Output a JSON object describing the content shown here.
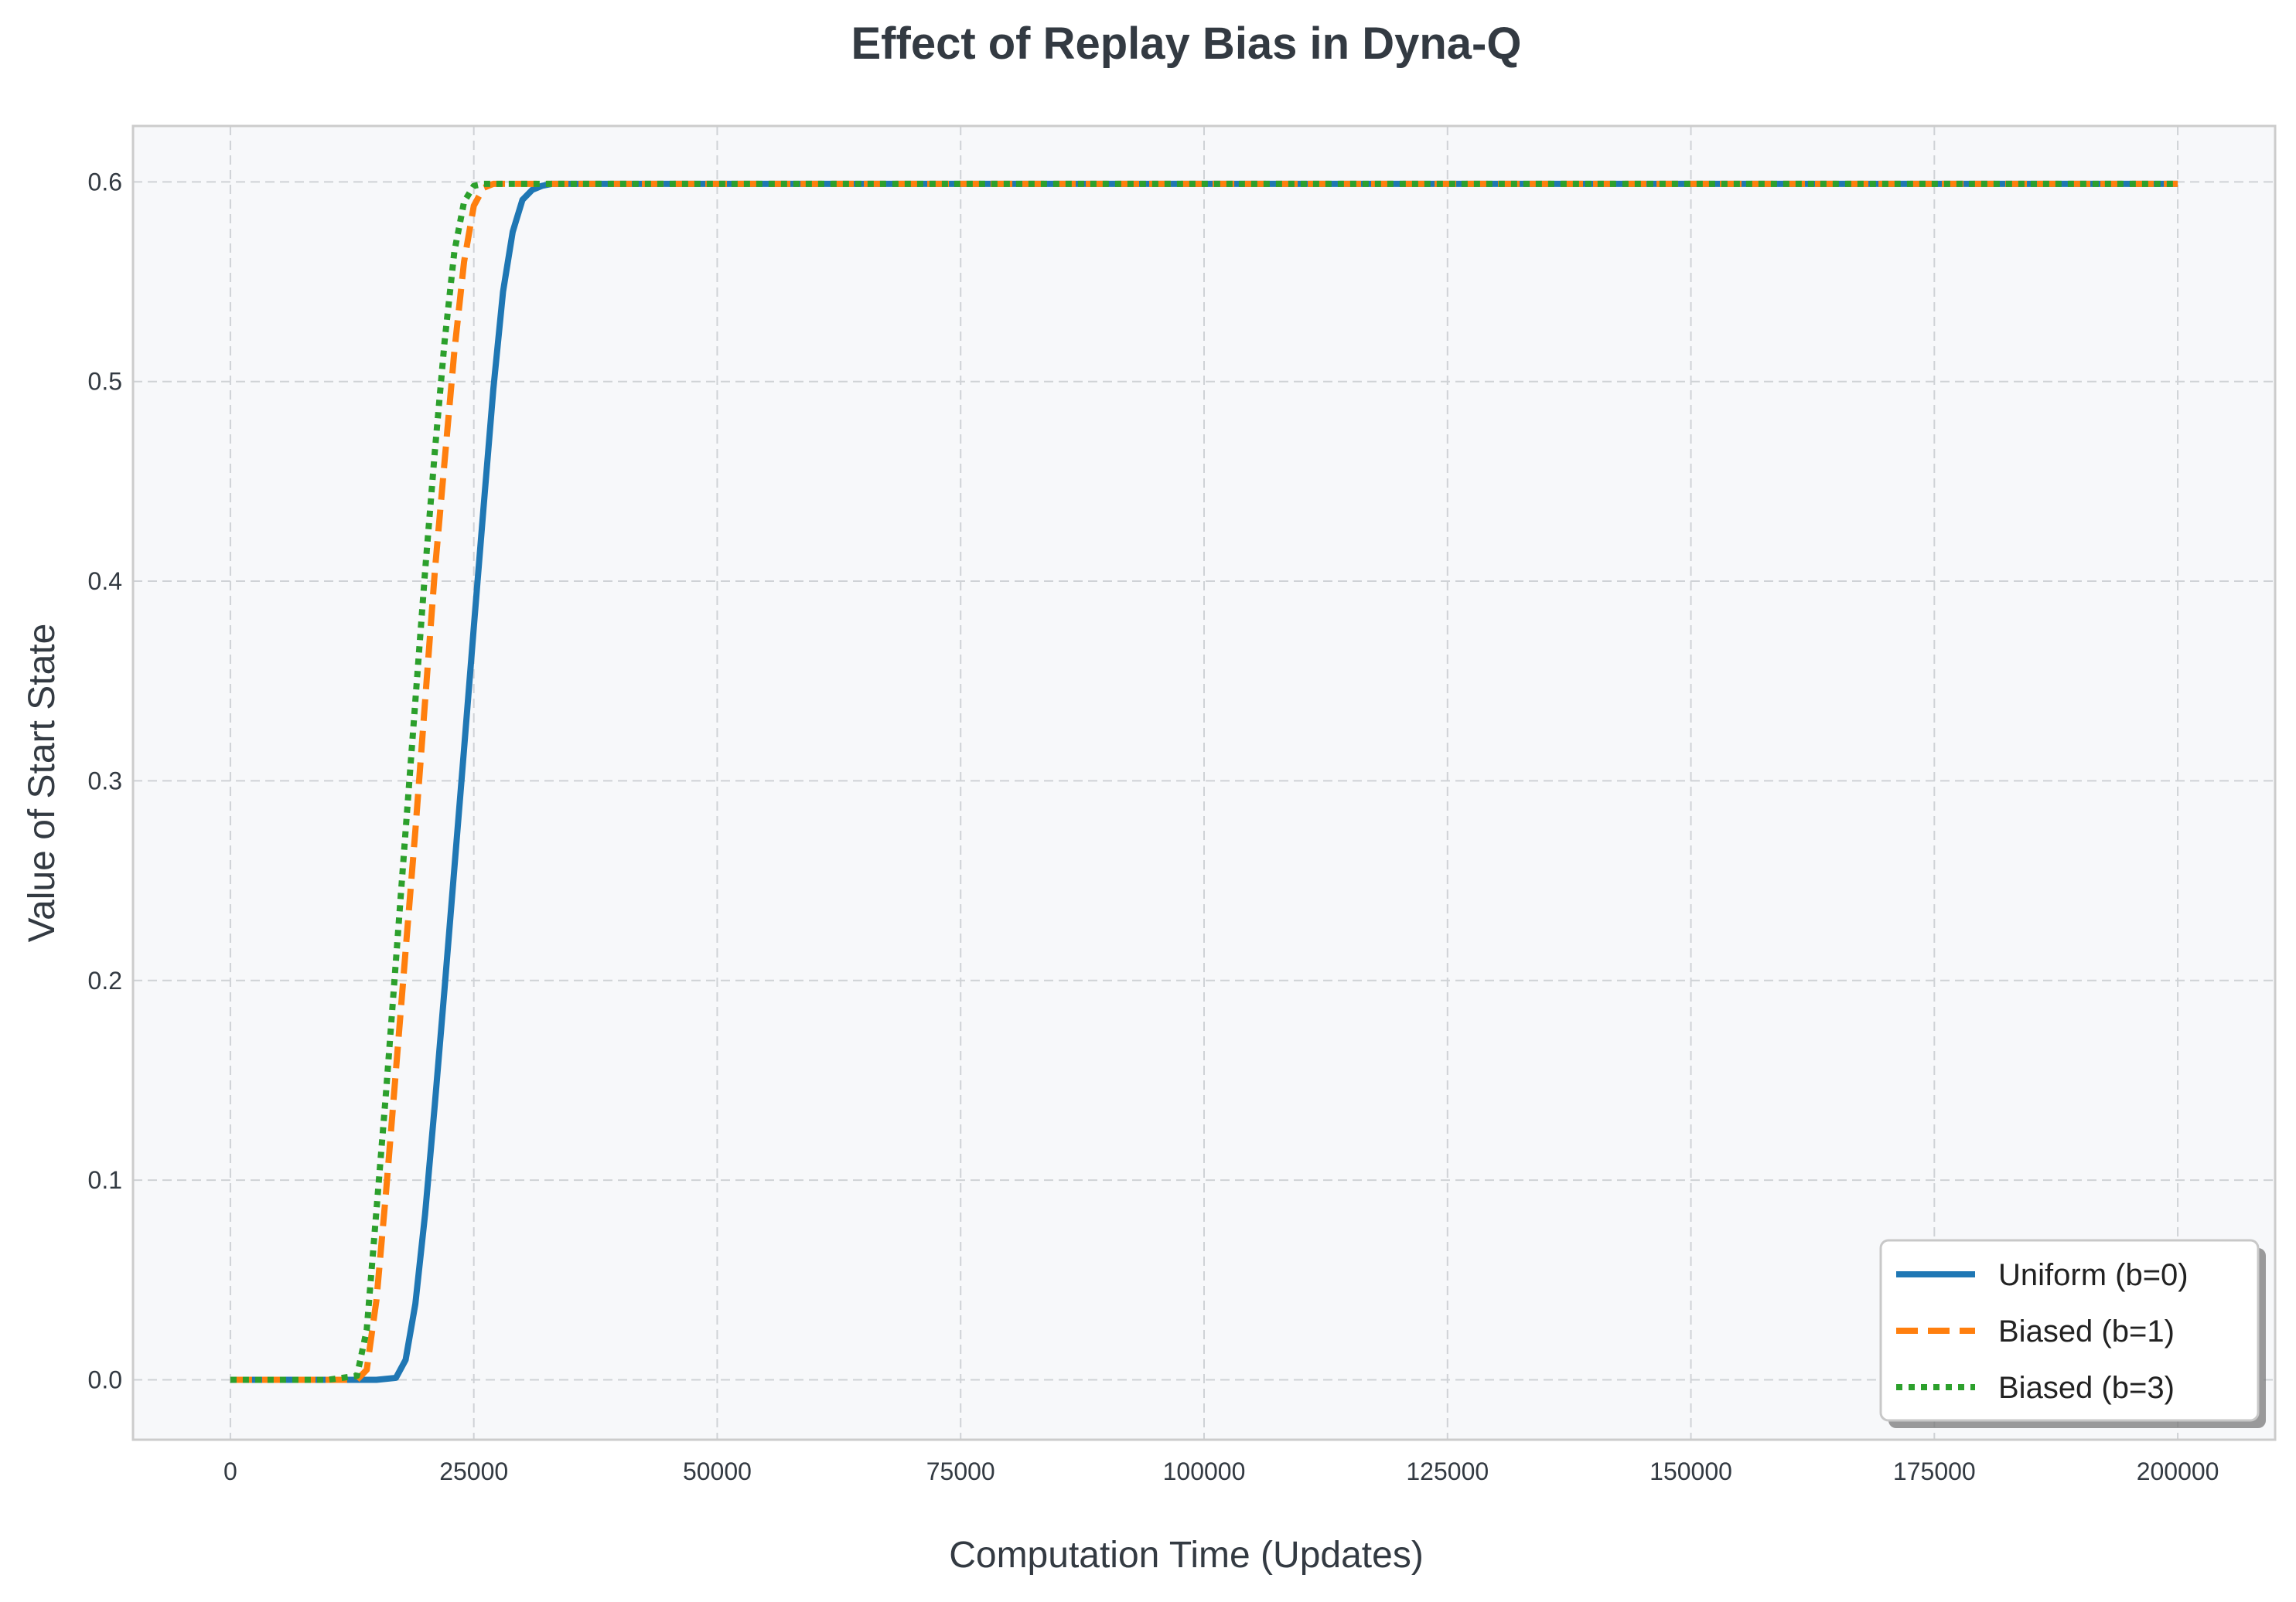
{
  "chart_data": {
    "type": "line",
    "title": "Effect of Replay Bias in Dyna-Q",
    "xlabel": "Computation Time (Updates)",
    "ylabel": "Value of Start State",
    "xlim": [
      -10000,
      210000
    ],
    "ylim": [
      -0.03,
      0.628
    ],
    "xticks": [
      0,
      25000,
      50000,
      75000,
      100000,
      125000,
      150000,
      175000,
      200000
    ],
    "xtick_labels": [
      "0",
      "25000",
      "50000",
      "75000",
      "100000",
      "125000",
      "150000",
      "175000",
      "200000"
    ],
    "yticks": [
      0.0,
      0.1,
      0.2,
      0.3,
      0.4,
      0.5,
      0.6
    ],
    "ytick_labels": [
      "0.0",
      "0.1",
      "0.2",
      "0.3",
      "0.4",
      "0.5",
      "0.6"
    ],
    "grid": true,
    "legend_position": "lower-right",
    "background_color": "#f7f8fa",
    "series": [
      {
        "name": "Uniform (b=0)",
        "color": "#1f77b4",
        "style": "solid",
        "x": [
          0,
          5000,
          10000,
          15000,
          17000,
          18000,
          19000,
          20000,
          21000,
          22000,
          23000,
          24000,
          25000,
          26000,
          27000,
          28000,
          29000,
          30000,
          31000,
          32000,
          33000,
          35000,
          50000,
          100000,
          150000,
          200000
        ],
        "y": [
          0,
          0,
          0,
          0,
          0.001,
          0.01,
          0.038,
          0.083,
          0.138,
          0.196,
          0.256,
          0.316,
          0.377,
          0.437,
          0.496,
          0.545,
          0.575,
          0.591,
          0.596,
          0.598,
          0.599,
          0.599,
          0.599,
          0.599,
          0.599,
          0.599
        ]
      },
      {
        "name": "Biased (b=1)",
        "color": "#ff7f0e",
        "style": "dashed",
        "x": [
          0,
          5000,
          10000,
          13000,
          14000,
          15000,
          16000,
          17000,
          18000,
          19000,
          20000,
          21000,
          22000,
          23000,
          24000,
          25000,
          26000,
          27000,
          28000,
          30000,
          50000,
          100000,
          150000,
          200000
        ],
        "y": [
          0,
          0,
          0,
          0,
          0.005,
          0.04,
          0.095,
          0.155,
          0.215,
          0.275,
          0.34,
          0.405,
          0.46,
          0.515,
          0.56,
          0.588,
          0.597,
          0.599,
          0.599,
          0.599,
          0.599,
          0.599,
          0.599,
          0.599
        ]
      },
      {
        "name": "Biased (b=3)",
        "color": "#2ca02c",
        "style": "dotted",
        "x": [
          0,
          5000,
          10000,
          13000,
          14000,
          15000,
          16000,
          17000,
          18000,
          19000,
          20000,
          21000,
          22000,
          23000,
          24000,
          25000,
          26000,
          27000,
          30000,
          50000,
          100000,
          150000,
          200000
        ],
        "y": [
          0,
          0,
          0,
          0.002,
          0.025,
          0.085,
          0.145,
          0.21,
          0.275,
          0.34,
          0.405,
          0.465,
          0.52,
          0.565,
          0.59,
          0.598,
          0.599,
          0.599,
          0.599,
          0.599,
          0.599,
          0.599,
          0.599
        ]
      }
    ]
  }
}
